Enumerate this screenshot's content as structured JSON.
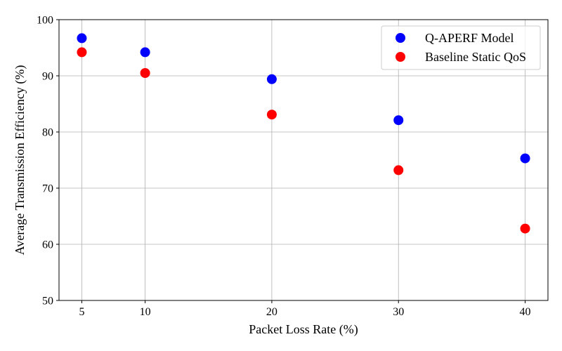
{
  "chart_data": {
    "type": "scatter",
    "x": [
      5,
      10,
      20,
      30,
      40
    ],
    "series": [
      {
        "name": "Q-APERF Model",
        "color": "#0000ff",
        "values": [
          96.7,
          94.2,
          89.4,
          82.1,
          75.3
        ]
      },
      {
        "name": "Baseline Static QoS",
        "color": "#ff0000",
        "values": [
          94.2,
          90.5,
          83.1,
          73.2,
          62.8
        ]
      }
    ],
    "xlabel": "Packet Loss Rate (%)",
    "ylabel": "Average Transmission Efficiency (%)",
    "xticks": [
      "5",
      "10",
      "20",
      "30",
      "40"
    ],
    "yticks": [
      "50",
      "60",
      "70",
      "80",
      "90",
      "100"
    ],
    "xlim": [
      3.2,
      41.8
    ],
    "ylim": [
      50,
      100
    ],
    "grid": true,
    "legend_position": "top-right"
  }
}
